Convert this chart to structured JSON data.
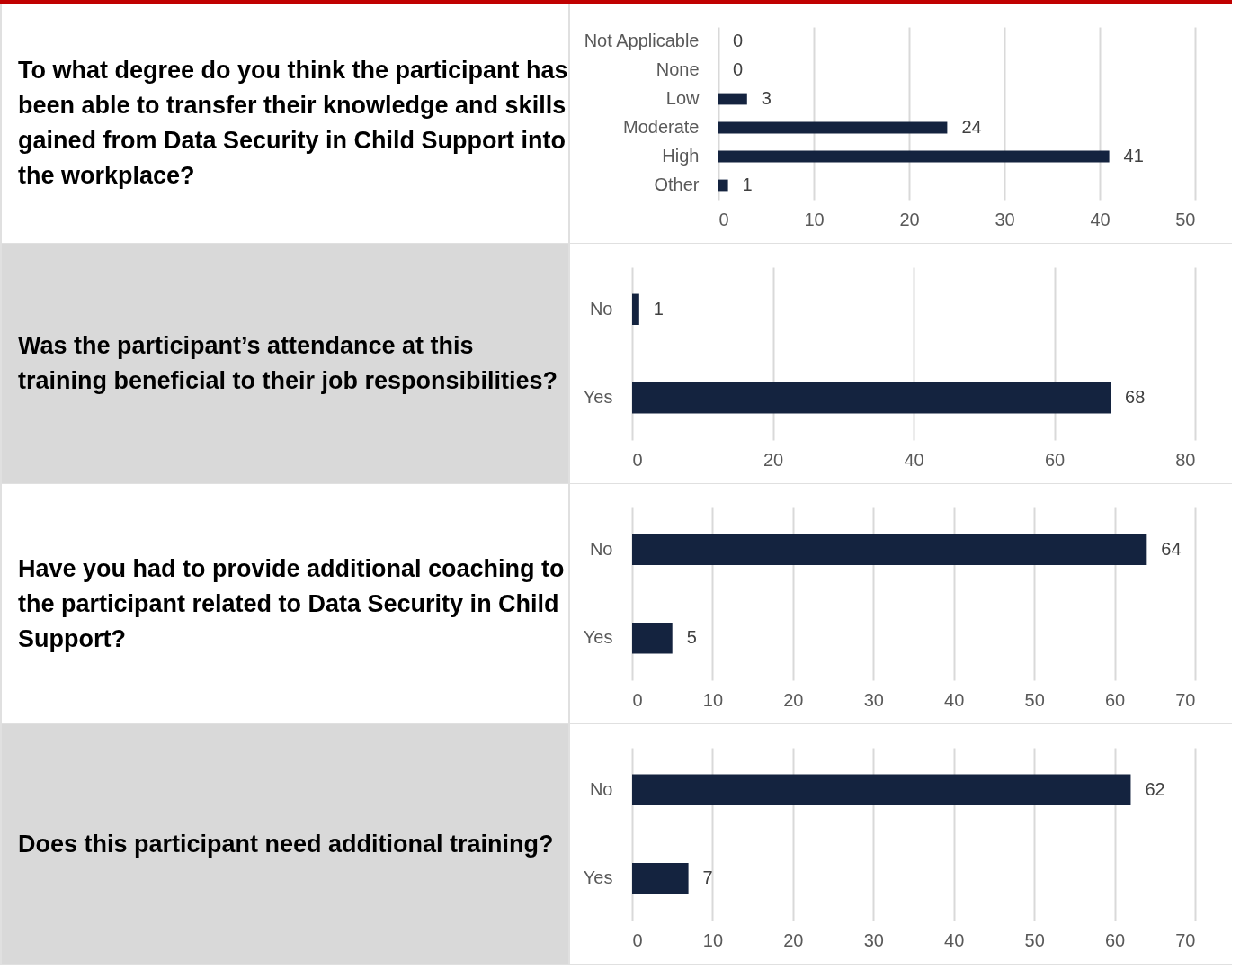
{
  "chart_data": [
    {
      "type": "bar",
      "orientation": "horizontal",
      "title": "To what degree do you think the participant has been able to transfer their knowledge and skills gained from Data Security in Child Support into the workplace?",
      "categories": [
        "Not Applicable",
        "None",
        "Low",
        "Moderate",
        "High",
        "Other"
      ],
      "values": [
        0,
        0,
        3,
        24,
        41,
        1
      ],
      "color": "#14233f",
      "xlim": [
        0,
        50
      ],
      "xticks": [
        0,
        10,
        20,
        30,
        40,
        50
      ],
      "grid": "x",
      "data_labels": true
    },
    {
      "type": "bar",
      "orientation": "horizontal",
      "title": "Was the participant’s attendance at this training beneficial to their job responsibilities?",
      "categories": [
        "No",
        "Yes"
      ],
      "values": [
        1,
        68
      ],
      "color": "#14233f",
      "xlim": [
        0,
        80
      ],
      "xticks": [
        0,
        20,
        40,
        60,
        80
      ],
      "grid": "x",
      "data_labels": true
    },
    {
      "type": "bar",
      "orientation": "horizontal",
      "title": "Have you had to provide additional coaching to the participant related to Data Security in Child Support?",
      "categories": [
        "No",
        "Yes"
      ],
      "values": [
        64,
        5
      ],
      "color": "#14233f",
      "xlim": [
        0,
        70
      ],
      "xticks": [
        0,
        10,
        20,
        30,
        40,
        50,
        60,
        70
      ],
      "grid": "x",
      "data_labels": true
    },
    {
      "type": "bar",
      "orientation": "horizontal",
      "title": "Does this participant need additional training?",
      "categories": [
        "No",
        "Yes"
      ],
      "values": [
        62,
        7
      ],
      "color": "#14233f",
      "xlim": [
        0,
        70
      ],
      "xticks": [
        0,
        10,
        20,
        30,
        40,
        50,
        60,
        70
      ],
      "grid": "x",
      "data_labels": true
    }
  ]
}
